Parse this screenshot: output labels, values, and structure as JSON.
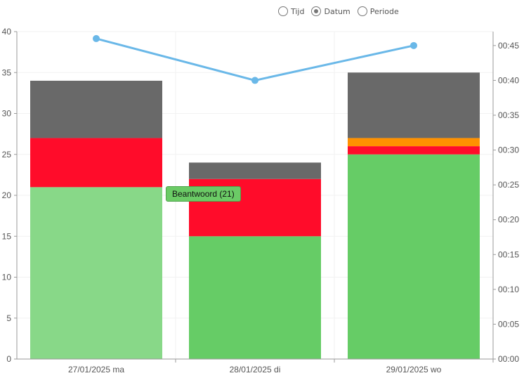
{
  "view_toggle": {
    "options": [
      {
        "label": "Tijd",
        "selected": false
      },
      {
        "label": "Datum",
        "selected": true
      },
      {
        "label": "Periode",
        "selected": false
      }
    ]
  },
  "tooltip": {
    "text": "Beantwoord (21)",
    "category_index": 0,
    "segment_index": 0
  },
  "chart_data": {
    "type": "bar",
    "stacked": true,
    "categories": [
      "27/01/2025 ma",
      "28/01/2025 di",
      "29/01/2025 wo"
    ],
    "series": [
      {
        "values": [
          21,
          15,
          25
        ],
        "color": "#66cc66"
      },
      {
        "values": [
          6,
          7,
          1
        ],
        "color": "#ff0c2a"
      },
      {
        "values": [
          0,
          0,
          1
        ],
        "color": "#ff9100"
      },
      {
        "values": [
          7,
          2,
          8
        ],
        "color": "#696969"
      }
    ],
    "highlight_color": "#88d888",
    "line_series": {
      "axis": "right",
      "color": "#6ab8e8",
      "values_minutes": [
        46.0,
        40.0,
        45.0
      ]
    },
    "y_left": {
      "min": 0,
      "max": 40,
      "ticks": [
        "0",
        "5",
        "10",
        "15",
        "20",
        "25",
        "30",
        "35",
        "40"
      ]
    },
    "y_right": {
      "min_minutes": 0,
      "max_minutes": 47,
      "ticks": [
        "00:00",
        "00:05",
        "00:10",
        "00:15",
        "00:20",
        "00:25",
        "00:30",
        "00:35",
        "00:40",
        "00:45"
      ]
    },
    "grid": true
  }
}
